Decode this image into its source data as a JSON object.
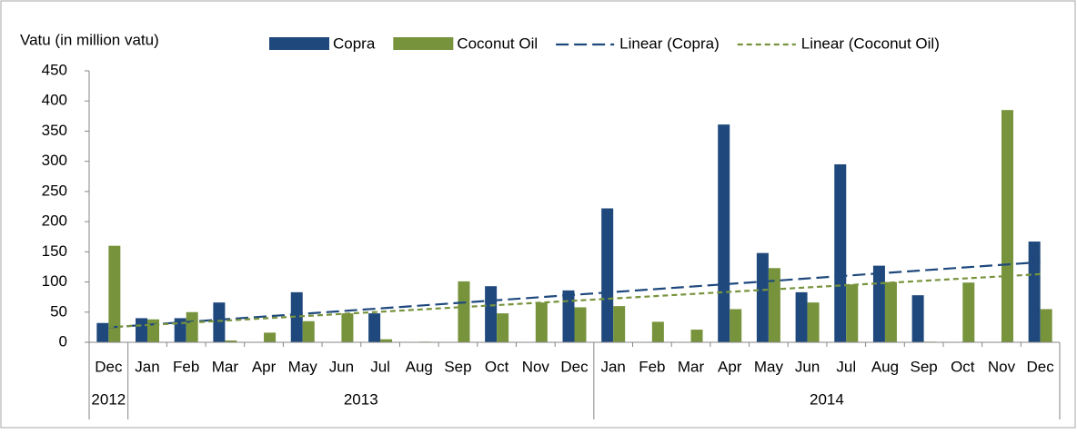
{
  "chart_data": {
    "type": "bar",
    "y_axis_label": "Vatu (in million vatu)",
    "categories": [
      "Dec",
      "Jan",
      "Feb",
      "Mar",
      "Apr",
      "May",
      "Jun",
      "Jul",
      "Aug",
      "Sep",
      "Oct",
      "Nov",
      "Dec",
      "Jan",
      "Feb",
      "Mar",
      "Apr",
      "May",
      "Jun",
      "Jul",
      "Aug",
      "Sep",
      "Oct",
      "Nov",
      "Dec"
    ],
    "years": [
      "2012",
      "2013",
      "2013",
      "2013",
      "2013",
      "2013",
      "2013",
      "2013",
      "2013",
      "2013",
      "2013",
      "2013",
      "2013",
      "2014",
      "2014",
      "2014",
      "2014",
      "2014",
      "2014",
      "2014",
      "2014",
      "2014",
      "2014",
      "2014",
      "2014"
    ],
    "series": [
      {
        "name": "Copra",
        "color": "#1f497d",
        "values": [
          32,
          40,
          40,
          66,
          0,
          83,
          0,
          48,
          0,
          0,
          93,
          0,
          86,
          222,
          0,
          0,
          361,
          148,
          83,
          295,
          127,
          78,
          0,
          0,
          167
        ]
      },
      {
        "name": "Coconut Oil",
        "color": "#77933c",
        "values": [
          160,
          38,
          50,
          3,
          16,
          35,
          48,
          5,
          1,
          101,
          48,
          66,
          58,
          60,
          34,
          21,
          55,
          123,
          66,
          96,
          100,
          1,
          99,
          385,
          55
        ]
      }
    ],
    "trendlines": [
      {
        "name": "Linear (Copra)",
        "series": 0,
        "color": "#1f497d"
      },
      {
        "name": "Linear (Coconut Oil)",
        "series": 1,
        "color": "#77933c"
      }
    ],
    "ylim": [
      0,
      450
    ],
    "yticks": [
      0,
      50,
      100,
      150,
      200,
      250,
      300,
      350,
      400,
      450
    ]
  }
}
